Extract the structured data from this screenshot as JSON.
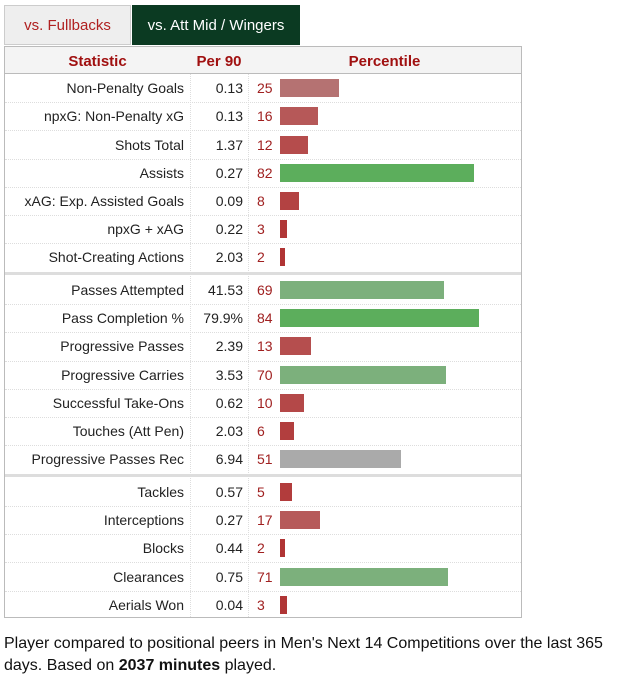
{
  "tabs": [
    "vs. Fullbacks",
    "vs. Att Mid / Wingers"
  ],
  "table": {
    "headers": [
      "Statistic",
      "Per 90",
      "Percentile"
    ],
    "groups": [
      {
        "rows": [
          {
            "stat": "Non-Penalty Goals",
            "per90": 0.13,
            "percentile": 25,
            "color": "#b57272"
          },
          {
            "stat": "npxG: Non-Penalty xG",
            "per90": 0.13,
            "percentile": 16,
            "color": "#b65858"
          },
          {
            "stat": "Shots Total",
            "per90": 1.37,
            "percentile": 12,
            "color": "#b54c4c"
          },
          {
            "stat": "Assists",
            "per90": 0.27,
            "percentile": 82,
            "color": "#5cae5c"
          },
          {
            "stat": "xAG: Exp. Assisted Goals",
            "per90": 0.09,
            "percentile": 8,
            "color": "#b34242"
          },
          {
            "stat": "npxG + xAG",
            "per90": 0.22,
            "percentile": 3,
            "color": "#b03636"
          },
          {
            "stat": "Shot-Creating Actions",
            "per90": 2.03,
            "percentile": 2,
            "color": "#b03434"
          }
        ]
      },
      {
        "rows": [
          {
            "stat": "Passes Attempted",
            "per90": 41.53,
            "percentile": 69,
            "color": "#7cb07c"
          },
          {
            "stat": "Pass Completion %",
            "per90": "79.9%",
            "percentile": 84,
            "color": "#5cae5c"
          },
          {
            "stat": "Progressive Passes",
            "per90": 2.39,
            "percentile": 13,
            "color": "#b54e4e"
          },
          {
            "stat": "Progressive Carries",
            "per90": 3.53,
            "percentile": 70,
            "color": "#7cb07c"
          },
          {
            "stat": "Successful Take-Ons",
            "per90": 0.62,
            "percentile": 10,
            "color": "#b44848"
          },
          {
            "stat": "Touches (Att Pen)",
            "per90": 2.03,
            "percentile": 6,
            "color": "#b23e3e"
          },
          {
            "stat": "Progressive Passes Rec",
            "per90": 6.94,
            "percentile": 51,
            "color": "#aaaaaa"
          }
        ]
      },
      {
        "rows": [
          {
            "stat": "Tackles",
            "per90": 0.57,
            "percentile": 5,
            "color": "#b23c3c"
          },
          {
            "stat": "Interceptions",
            "per90": 0.27,
            "percentile": 17,
            "color": "#b65a5a"
          },
          {
            "stat": "Blocks",
            "per90": 0.44,
            "percentile": 2,
            "color": "#b03434"
          },
          {
            "stat": "Clearances",
            "per90": 0.75,
            "percentile": 71,
            "color": "#7cb07c"
          },
          {
            "stat": "Aerials Won",
            "per90": 0.04,
            "percentile": 3,
            "color": "#b03636"
          }
        ]
      }
    ]
  },
  "footer": {
    "text": "Player compared to positional peers in Men's Next 14 Competitions over the last 365 days. Based on",
    "bold": "2037 minutes",
    "end": "played."
  }
}
